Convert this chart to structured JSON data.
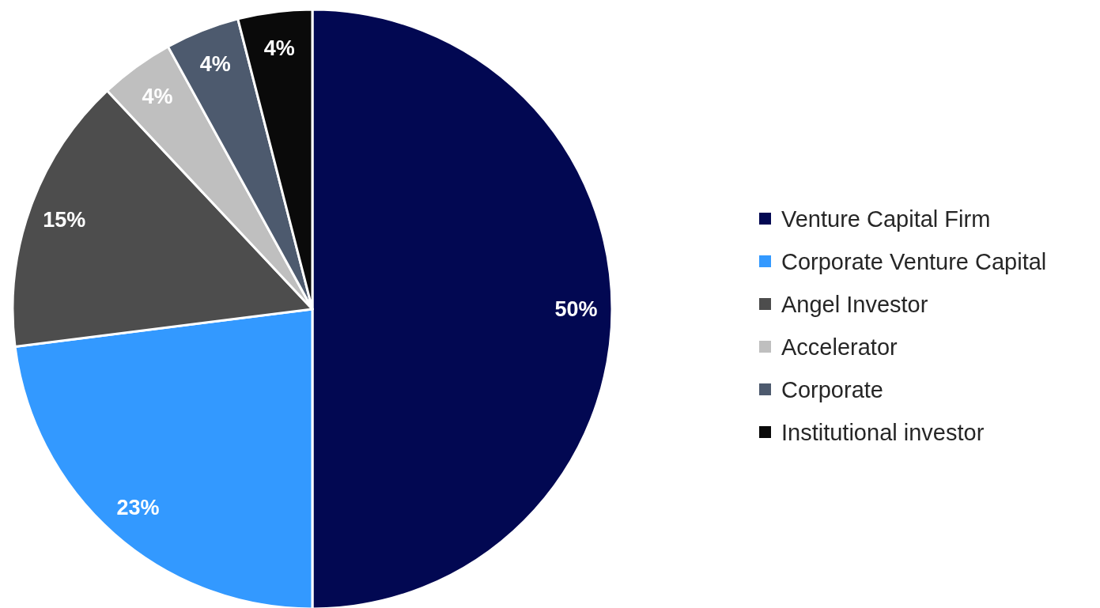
{
  "chart_data": {
    "type": "pie",
    "categories": [
      "Venture Capital Firm",
      "Corporate Venture Capital",
      "Angel Investor",
      "Accelerator",
      "Corporate",
      "Institutional investor"
    ],
    "values": [
      50,
      23,
      15,
      4,
      4,
      4
    ],
    "colors": [
      "#020852",
      "#3399ff",
      "#4d4d4d",
      "#bfbfbf",
      "#4d5a6e",
      "#0a0a0a"
    ],
    "value_labels": [
      "50%",
      "23%",
      "15%",
      "4%",
      "4%",
      "4%"
    ],
    "legend": "right"
  }
}
